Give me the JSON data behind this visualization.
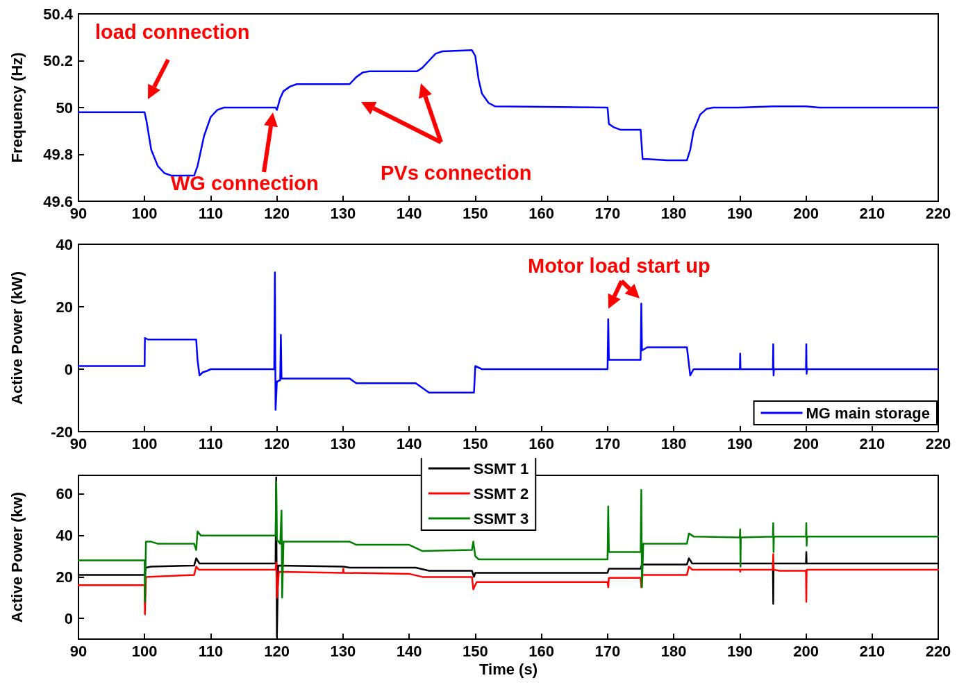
{
  "chart_data": [
    {
      "type": "line",
      "ylabel": "Frequency (Hz)",
      "xlim": [
        90,
        220
      ],
      "xticks": [
        90,
        100,
        110,
        120,
        130,
        140,
        150,
        160,
        170,
        180,
        190,
        200,
        210,
        220
      ],
      "ylim": [
        49.6,
        50.4
      ],
      "yticks": [
        49.6,
        49.8,
        50,
        50.2,
        50.4
      ],
      "grid": false,
      "legend": false,
      "marker": "none",
      "line_style": "solid",
      "annotations": [
        "load connection",
        "WG connection",
        "PVs connection"
      ],
      "series": [
        {
          "color": "#0000ff",
          "x": [
            90,
            100,
            100.3,
            101,
            102,
            103,
            104,
            107.5,
            108,
            109,
            110,
            111,
            112,
            119.8,
            120,
            120.5,
            121,
            122,
            123,
            131,
            132,
            133,
            134,
            141.2,
            142,
            143,
            144,
            145,
            149.5,
            150,
            150.5,
            151,
            152,
            153,
            170,
            170.2,
            171,
            172,
            175,
            175.3,
            176,
            179,
            182,
            182.5,
            183,
            184,
            185,
            186,
            190,
            195,
            200,
            202,
            220
          ],
          "values": [
            49.98,
            49.98,
            49.94,
            49.82,
            49.75,
            49.72,
            49.71,
            49.71,
            49.75,
            49.88,
            49.96,
            49.99,
            50.0,
            50.0,
            49.99,
            50.04,
            50.07,
            50.09,
            50.1,
            50.1,
            50.13,
            50.15,
            50.155,
            50.155,
            50.17,
            50.2,
            50.23,
            50.24,
            50.245,
            50.22,
            50.12,
            50.06,
            50.02,
            50.005,
            50.0,
            49.93,
            49.915,
            49.905,
            49.905,
            49.78,
            49.78,
            49.775,
            49.775,
            49.82,
            49.9,
            49.97,
            49.995,
            50.0,
            50.0,
            50.005,
            50.005,
            50.0,
            50.0
          ]
        }
      ]
    },
    {
      "type": "line",
      "ylabel": "Active Power (kW)",
      "xlim": [
        90,
        220
      ],
      "xticks": [
        90,
        100,
        110,
        120,
        130,
        140,
        150,
        160,
        170,
        180,
        190,
        200,
        210,
        220
      ],
      "ylim": [
        -20,
        40
      ],
      "yticks": [
        -20,
        0,
        20,
        40
      ],
      "grid": false,
      "legend": "bottom right",
      "marker": "none",
      "line_style": "solid",
      "annotations": [
        "Motor load start up"
      ],
      "series": [
        {
          "name": "MG main storage",
          "color": "#0000ff",
          "x": [
            90,
            100,
            100.05,
            100.5,
            107.8,
            108,
            108.3,
            108.8,
            109.5,
            110,
            119.6,
            119.7,
            119.8,
            120,
            120.5,
            120.6,
            120.7,
            131,
            132,
            141,
            143,
            149.8,
            150,
            150.5,
            151,
            170,
            170.1,
            170.2,
            175,
            175.1,
            175.2,
            176,
            182,
            182.5,
            183,
            190,
            190.05,
            190.1,
            195,
            195.05,
            195.1,
            195.15,
            200,
            200.05,
            200.1,
            200.15,
            220
          ],
          "values": [
            1,
            1,
            10,
            9.5,
            9.5,
            3,
            -2,
            -1,
            -0.5,
            0,
            0,
            31,
            -13,
            -4,
            -3.5,
            11,
            -3,
            -3,
            -4.5,
            -4.5,
            -7.5,
            -7.5,
            1,
            0.5,
            0,
            0,
            16,
            3,
            3,
            21,
            6,
            7,
            7,
            -2,
            0,
            0,
            5,
            0,
            0,
            8,
            -2,
            0,
            0,
            8,
            -1.5,
            0,
            0
          ]
        }
      ]
    },
    {
      "type": "line",
      "xlabel": "Time (s)",
      "ylabel": "Active Power (kw)",
      "xlim": [
        90,
        220
      ],
      "xticks": [
        90,
        100,
        110,
        120,
        130,
        140,
        150,
        160,
        170,
        180,
        190,
        200,
        210,
        220
      ],
      "ylim": [
        -10,
        69
      ],
      "yticks": [
        0,
        20,
        40,
        60
      ],
      "grid": false,
      "legend": "top",
      "marker": "none",
      "line_style": "solid",
      "series": [
        {
          "name": "SSMT 1",
          "color": "#000000",
          "x": [
            90,
            100,
            100.2,
            101,
            107.5,
            107.8,
            108.3,
            119.8,
            119.9,
            120,
            120.2,
            130,
            131,
            141,
            143,
            149.5,
            149.8,
            150,
            170,
            170.2,
            175,
            175.2,
            182,
            182.3,
            182.8,
            195,
            195.05,
            195.1,
            200,
            200.05,
            200.1,
            220
          ],
          "values": [
            21,
            21,
            24.5,
            25,
            25.5,
            29,
            26.5,
            26.5,
            68,
            -9,
            25.5,
            25,
            24.5,
            24.5,
            23,
            23,
            20,
            22,
            22,
            24,
            24,
            26,
            26,
            29,
            26.5,
            26.5,
            7,
            26.5,
            26.5,
            32,
            26.5,
            26.5
          ]
        },
        {
          "name": "SSMT 2",
          "color": "#ff0000",
          "x": [
            90,
            100,
            100.05,
            100.2,
            107.5,
            107.8,
            108.2,
            119.8,
            119.9,
            120,
            120.3,
            130,
            130.05,
            130.1,
            140,
            142,
            149.5,
            149.7,
            150.2,
            170,
            170.1,
            170.2,
            175,
            175.1,
            175.3,
            182,
            182.3,
            182.8,
            190,
            190.05,
            190.1,
            195,
            195.05,
            195.1,
            196,
            200,
            200.05,
            200.1,
            220
          ],
          "values": [
            16,
            16,
            2,
            20,
            21,
            25,
            23.5,
            23.5,
            27,
            10,
            22.5,
            22,
            24,
            22,
            21.5,
            20,
            20,
            14,
            17.5,
            17.5,
            15,
            19.5,
            19.5,
            15,
            21,
            21,
            25,
            23.5,
            23.5,
            22.5,
            23.5,
            23.5,
            31,
            23.5,
            23,
            23,
            8,
            23.5,
            23.5
          ]
        },
        {
          "name": "SSMT 3",
          "color": "#008000",
          "x": [
            90,
            100,
            100.05,
            100.2,
            101,
            102,
            107.5,
            107.8,
            108,
            108.5,
            119.8,
            119.9,
            120,
            120.5,
            120.7,
            120.8,
            121,
            131,
            132,
            140,
            142,
            149.5,
            149.7,
            150,
            150.5,
            170,
            170.1,
            170.2,
            175,
            175.1,
            175.2,
            175.4,
            182,
            182.3,
            183,
            190,
            190.05,
            190.1,
            190.15,
            195,
            195.05,
            195.1,
            195.15,
            200,
            200.05,
            200.1,
            200.15,
            220
          ],
          "values": [
            28,
            28,
            8,
            37,
            37,
            36,
            36,
            33,
            42,
            40,
            40,
            66,
            38,
            36,
            52,
            10,
            37,
            37,
            35.5,
            35.5,
            32.5,
            33,
            37,
            30,
            28.5,
            28.5,
            54,
            32,
            32,
            62,
            15,
            36,
            36,
            41,
            39.5,
            39,
            43,
            25,
            39,
            39.5,
            46,
            32,
            39.5,
            39.5,
            46,
            35,
            39.5,
            39.5
          ]
        }
      ]
    }
  ]
}
